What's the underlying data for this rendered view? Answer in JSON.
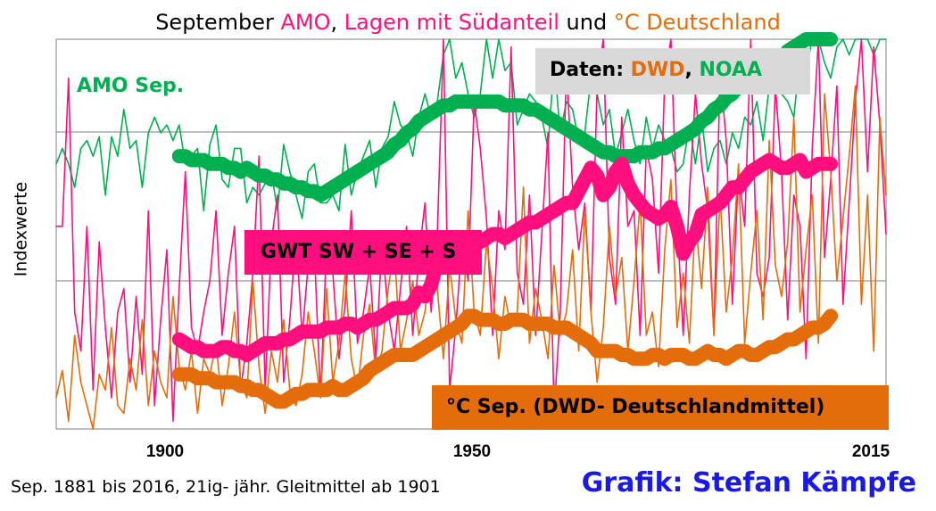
{
  "title": {
    "part1": "September ",
    "part2": "AMO",
    "part3": ", ",
    "part4": "Lagen mit Südanteil",
    "part5": " und  ",
    "part6": "°C Deutschland"
  },
  "colors": {
    "amo": "#00b050",
    "gwt": "#ff0e7d",
    "temp": "#e46c0a",
    "grid": "#7f7f7f",
    "credit": "#1a1ae6",
    "source_box": "#d9d9d9"
  },
  "labels": {
    "amo": "AMO Sep.",
    "source_prefix": "Daten: ",
    "source_dwd": "DWD",
    "source_sep": ", ",
    "source_noaa": "NOAA",
    "gwt": "GWT SW + SE + S",
    "temp": "°C Sep. (DWD- Deutschlandmittel)"
  },
  "footnote": "Sep. 1881 bis 2016, 21ig- jähr. Gleitmittel ab 1901",
  "credit": "Grafik: Stefan Kämpfe",
  "chart_data": {
    "type": "line",
    "ylabel": "Indexwerte",
    "xlim": [
      1881,
      2016
    ],
    "ylim": [
      0,
      100
    ],
    "grid": "horizontal",
    "x_ticks": [
      "1900",
      "1950",
      "2015"
    ],
    "series": [
      {
        "name": "AMO Sep.",
        "kind": "moving_average",
        "x_start": 1901,
        "values": [
          70,
          70,
          69,
          69,
          69,
          68,
          68,
          68,
          67,
          67,
          66,
          67,
          66,
          65,
          65,
          64,
          64,
          63,
          63,
          62,
          62,
          61,
          61,
          60,
          61,
          62,
          63,
          64,
          65,
          66,
          67,
          68,
          69,
          70,
          71,
          73,
          74,
          76,
          77,
          79,
          80,
          81,
          82,
          83,
          83,
          84,
          84,
          84,
          84,
          84,
          84,
          84,
          84,
          83,
          83,
          83,
          83,
          82,
          82,
          81,
          80,
          79,
          78,
          77,
          76,
          75,
          74,
          73,
          72,
          71,
          71,
          70,
          70,
          70,
          70,
          71,
          71,
          71,
          72,
          72,
          73,
          74,
          75,
          76,
          77,
          79,
          80,
          82,
          83,
          85,
          86,
          88,
          89,
          90,
          91,
          92,
          93,
          94,
          95,
          97,
          98,
          99,
          100,
          101,
          102,
          103,
          104
        ]
      },
      {
        "name": "GWT SW + SE + S",
        "kind": "moving_average",
        "x_start": 1901,
        "values": [
          23,
          22,
          21,
          21,
          20,
          20,
          20,
          21,
          21,
          20,
          20,
          19,
          20,
          21,
          22,
          22,
          22,
          23,
          23,
          24,
          25,
          25,
          25,
          25,
          26,
          26,
          26,
          27,
          27,
          26,
          27,
          28,
          28,
          29,
          30,
          31,
          31,
          31,
          32,
          35,
          34,
          37,
          43,
          44,
          45,
          45,
          45,
          45,
          47,
          48,
          49,
          50,
          50,
          49,
          50,
          51,
          52,
          53,
          53,
          54,
          55,
          56,
          57,
          58,
          58,
          61,
          64,
          67,
          65,
          60,
          62,
          66,
          68,
          63,
          60,
          58,
          56,
          55,
          54,
          55,
          57,
          52,
          45,
          48,
          50,
          55,
          56,
          57,
          58,
          60,
          62,
          62,
          64,
          66,
          67,
          68,
          69,
          68,
          67,
          67,
          68,
          69,
          66,
          67,
          68,
          68,
          68
        ]
      },
      {
        "name": "°C Sep. (DWD- Deutschlandmittel)",
        "kind": "moving_average",
        "x_start": 1901,
        "values": [
          14,
          14,
          14,
          13,
          13,
          13,
          12,
          12,
          12,
          12,
          11,
          11,
          10,
          10,
          9,
          8,
          7,
          7,
          8,
          9,
          9,
          10,
          10,
          10,
          10,
          11,
          10,
          10,
          11,
          12,
          13,
          15,
          16,
          17,
          18,
          19,
          19,
          19,
          19,
          20,
          21,
          22,
          23,
          24,
          25,
          26,
          27,
          29,
          29,
          28,
          28,
          28,
          27,
          27,
          28,
          28,
          28,
          27,
          27,
          27,
          27,
          26,
          26,
          26,
          25,
          24,
          23,
          22,
          20,
          20,
          20,
          20,
          19,
          19,
          18,
          18,
          18,
          19,
          19,
          18,
          19,
          19,
          19,
          18,
          18,
          19,
          20,
          19,
          19,
          18,
          19,
          20,
          20,
          19,
          19,
          20,
          21,
          21,
          22,
          23,
          23,
          24,
          25,
          26,
          26,
          27,
          29
        ]
      },
      {
        "name": "AMO Sep. (annual)",
        "kind": "annual",
        "x_start": 1881,
        "values": [
          68,
          72,
          68,
          62,
          72,
          74,
          70,
          75,
          60,
          75,
          70,
          82,
          72,
          74,
          62,
          76,
          80,
          76,
          78,
          74,
          78,
          68,
          70,
          72,
          56,
          73,
          78,
          64,
          62,
          72,
          72,
          58,
          62,
          60,
          63,
          66,
          56,
          73,
          66,
          60,
          54,
          66,
          68,
          58,
          58,
          60,
          56,
          73,
          60,
          66,
          70,
          74,
          62,
          72,
          75,
          84,
          78,
          76,
          70,
          80,
          86,
          80,
          84,
          96,
          110,
          90,
          94,
          86,
          80,
          86,
          104,
          90,
          102,
          92,
          94,
          78,
          82,
          86,
          84,
          80,
          72,
          94,
          76,
          84,
          82,
          74,
          76,
          90,
          86,
          78,
          82,
          70,
          76,
          82,
          74,
          68,
          80,
          72,
          78,
          74,
          72,
          66,
          68,
          78,
          68,
          80,
          66,
          72,
          74,
          68,
          76,
          72,
          80,
          78,
          84,
          74,
          88,
          90,
          86,
          84,
          80,
          96,
          92,
          100,
          106,
          94,
          90,
          98,
          108,
          96,
          100,
          110,
          104,
          96,
          108,
          100
        ]
      },
      {
        "name": "GWT SW + SE + S (annual)",
        "kind": "annual",
        "x_start": 1881,
        "values": [
          52,
          52,
          90,
          30,
          20,
          52,
          10,
          48,
          26,
          8,
          30,
          36,
          12,
          34,
          14,
          56,
          6,
          28,
          46,
          2,
          36,
          66,
          26,
          20,
          30,
          38,
          56,
          24,
          40,
          52,
          10,
          22,
          40,
          70,
          10,
          48,
          60,
          12,
          28,
          50,
          24,
          42,
          46,
          8,
          48,
          40,
          18,
          32,
          56,
          22,
          30,
          42,
          18,
          48,
          30,
          20,
          36,
          52,
          24,
          44,
          58,
          30,
          50,
          110,
          10,
          26,
          48,
          38,
          84,
          72,
          54,
          24,
          56,
          46,
          98,
          40,
          32,
          60,
          24,
          50,
          76,
          4,
          30,
          94,
          62,
          46,
          58,
          30,
          88,
          102,
          44,
          32,
          80,
          52,
          56,
          24,
          72,
          64,
          40,
          90,
          106,
          54,
          24,
          60,
          86,
          68,
          56,
          24,
          92,
          74,
          32,
          66,
          52,
          100,
          40,
          34,
          44,
          88,
          66,
          28,
          60,
          52,
          18,
          72,
          102,
          44,
          64,
          88,
          32,
          58,
          84,
          104,
          66,
          98,
          78,
          50
        ]
      },
      {
        "name": "°C Sep. (annual)",
        "kind": "annual",
        "x_start": 1881,
        "values": [
          8,
          15,
          2,
          24,
          12,
          6,
          0,
          14,
          10,
          26,
          6,
          4,
          18,
          10,
          28,
          6,
          20,
          12,
          8,
          34,
          16,
          10,
          20,
          4,
          18,
          14,
          22,
          6,
          16,
          30,
          12,
          8,
          38,
          16,
          4,
          20,
          12,
          28,
          10,
          6,
          14,
          30,
          20,
          8,
          36,
          12,
          22,
          40,
          18,
          10,
          24,
          32,
          14,
          20,
          36,
          46,
          20,
          28,
          38,
          24,
          30,
          44,
          36,
          18,
          42,
          28,
          22,
          56,
          30,
          24,
          48,
          36,
          18,
          34,
          26,
          30,
          62,
          22,
          36,
          28,
          18,
          42,
          24,
          30,
          46,
          20,
          56,
          30,
          12,
          26,
          52,
          34,
          44,
          20,
          38,
          58,
          24,
          30,
          16,
          46,
          64,
          26,
          40,
          22,
          54,
          36,
          62,
          24,
          60,
          30,
          44,
          68,
          22,
          40,
          56,
          28,
          74,
          42,
          34,
          48,
          80,
          30,
          46,
          60,
          22,
          86,
          66,
          38,
          54,
          70,
          88,
          32,
          60,
          20,
          80,
          60
        ]
      }
    ]
  }
}
